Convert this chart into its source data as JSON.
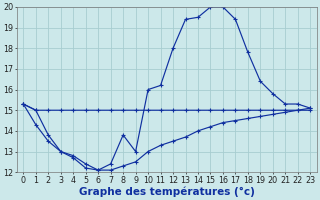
{
  "title": "Graphe des températures (°c)",
  "bg_color": "#cce8ea",
  "grid_color": "#a8cdd0",
  "line_color": "#1030a0",
  "hours": [
    0,
    1,
    2,
    3,
    4,
    5,
    6,
    7,
    8,
    9,
    10,
    11,
    12,
    13,
    14,
    15,
    16,
    17,
    18,
    19,
    20,
    21,
    22,
    23
  ],
  "temp_curve": [
    15.3,
    15.0,
    13.8,
    13.0,
    12.7,
    12.2,
    12.1,
    12.4,
    13.8,
    13.0,
    16.0,
    16.2,
    18.0,
    19.4,
    19.5,
    20.0,
    20.0,
    19.4,
    17.8,
    16.4,
    15.8,
    15.3,
    15.3,
    15.1
  ],
  "min_curve": [
    15.3,
    14.3,
    13.5,
    13.0,
    12.8,
    12.4,
    12.1,
    12.1,
    12.3,
    12.5,
    13.0,
    13.3,
    13.5,
    13.7,
    14.0,
    14.2,
    14.4,
    14.5,
    14.6,
    14.7,
    14.8,
    14.9,
    15.0,
    15.0
  ],
  "max_curve": [
    15.3,
    15.0,
    15.0,
    15.0,
    15.0,
    15.0,
    15.0,
    15.0,
    15.0,
    15.0,
    15.0,
    15.0,
    15.0,
    15.0,
    15.0,
    15.0,
    15.0,
    15.0,
    15.0,
    15.0,
    15.0,
    15.0,
    15.0,
    15.1
  ],
  "ylim_min": 12,
  "ylim_max": 20,
  "yticks": [
    12,
    13,
    14,
    15,
    16,
    17,
    18,
    19,
    20
  ],
  "tick_fontsize": 5.8,
  "xlabel_fontsize": 7.5,
  "figsize": [
    3.2,
    2.0
  ],
  "dpi": 100
}
